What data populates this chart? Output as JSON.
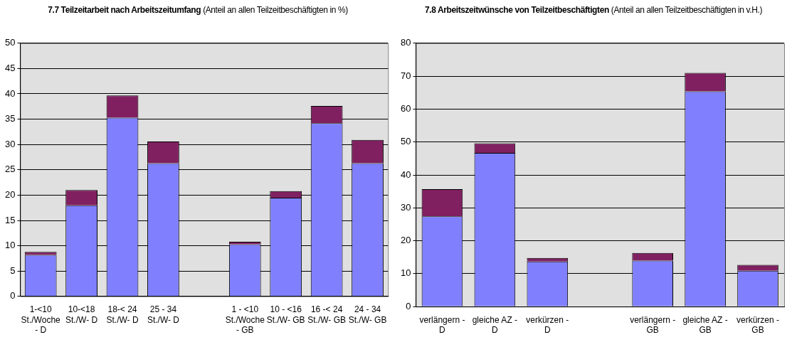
{
  "chart_data": [
    {
      "type": "bar",
      "title": "7.7 Teilzeitarbeit nach Arbeitszeitumfang",
      "subtitle": "(Anteil an allen Teilzeitbeschäftigten in %)",
      "stacked": true,
      "legend": false,
      "grid": "y",
      "categories": [
        "1-<10 St./Woche - D",
        "10-<18 St./W- D",
        "18-< 24 St./W- D",
        "25 - 34 St./W- D",
        null,
        "1 - <10 St./Woche - GB",
        "10 - <16 St./W- GB",
        "16 -< 24 St./W- GB",
        "24 - 34 St./W- GB"
      ],
      "series": [
        {
          "color": "#8080ff",
          "values": [
            8.2,
            18,
            35.3,
            26.3,
            null,
            10.3,
            19.5,
            34.2,
            26.3
          ]
        },
        {
          "color": "#802060",
          "values": [
            0.6,
            3,
            4.4,
            4.3,
            null,
            0.5,
            1.3,
            3.4,
            4.6
          ]
        }
      ],
      "ylim": [
        0,
        50
      ],
      "yticks": [
        0,
        5,
        10,
        15,
        20,
        25,
        30,
        35,
        40,
        45,
        50
      ]
    },
    {
      "type": "bar",
      "title": "7.8 Arbeitszeitwünsche von Teilzeitbeschäftigten",
      "subtitle": "(Anteil an allen Teilzeitbeschäftigten in v.H.)",
      "stacked": true,
      "legend": false,
      "grid": "y",
      "categories": [
        "verlängern - D",
        "gleiche AZ - D",
        "verkürzen - D",
        null,
        "verlängern - GB",
        "gleiche AZ - GB",
        "verkürzen - GB"
      ],
      "series": [
        {
          "color": "#8080ff",
          "values": [
            27.4,
            46.7,
            13.7,
            null,
            14,
            65.4,
            10.9
          ]
        },
        {
          "color": "#802060",
          "values": [
            8.3,
            2.9,
            1.1,
            null,
            2.3,
            5.6,
            1.8
          ]
        }
      ],
      "ylim": [
        0,
        80
      ],
      "yticks": [
        0,
        10,
        20,
        30,
        40,
        50,
        60,
        70,
        80
      ]
    }
  ]
}
